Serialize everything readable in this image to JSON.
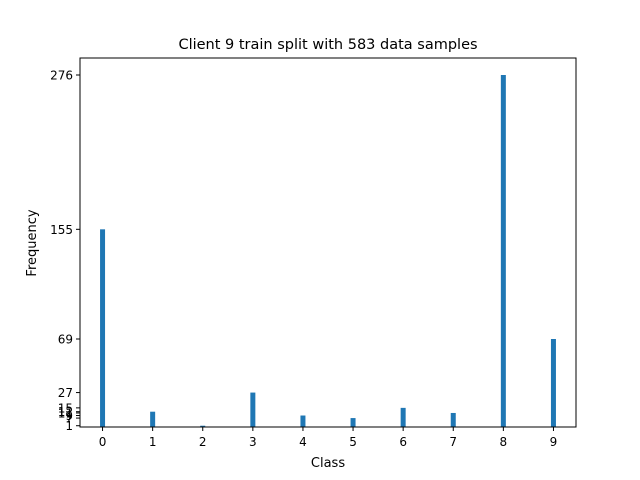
{
  "chart_data": {
    "type": "bar",
    "title": "Client 9 train split with 583 data samples",
    "xlabel": "Class",
    "ylabel": "Frequency",
    "categories": [
      "0",
      "1",
      "2",
      "3",
      "4",
      "5",
      "6",
      "7",
      "8",
      "9"
    ],
    "values": [
      155,
      12,
      1,
      27,
      9,
      7,
      15,
      11,
      276,
      69
    ],
    "ytick_labels": [
      1,
      7,
      9,
      11,
      12,
      15,
      27,
      69,
      155,
      276
    ],
    "xlim": [
      -0.45,
      9.45
    ],
    "ylim": [
      0,
      276
    ],
    "bar_color": "#1f77b4",
    "grid": false,
    "legend": "none"
  }
}
